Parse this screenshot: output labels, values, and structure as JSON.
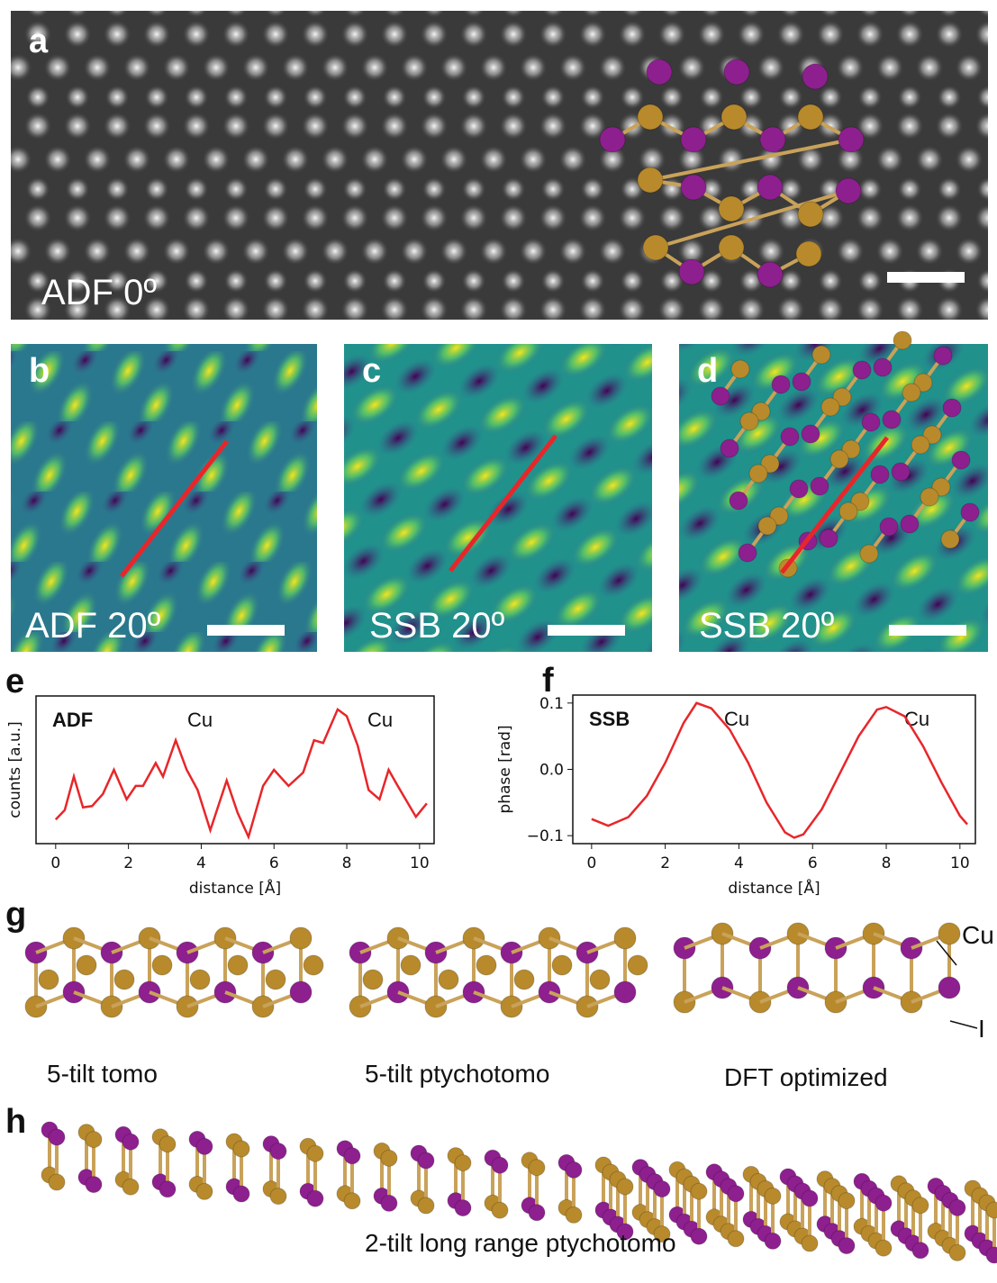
{
  "panels": [
    {
      "label": "a",
      "caption": "ADF 0º"
    },
    {
      "label": "b",
      "caption": "ADF 20º"
    },
    {
      "label": "c",
      "caption": "SSB 20º"
    },
    {
      "label": "d",
      "caption": "SSB 20º"
    }
  ],
  "chart_data": [
    {
      "type": "line",
      "panel": "e",
      "ylabel": "counts [a.u.]",
      "xlabel": "distance [Å]",
      "annotations": [
        "ADF",
        "Cu",
        "Cu"
      ],
      "x": [
        0,
        0.25,
        0.5,
        0.75,
        1.0,
        1.3,
        1.6,
        1.95,
        2.2,
        2.4,
        2.75,
        2.95,
        3.3,
        3.6,
        3.9,
        4.25,
        4.7,
        5.0,
        5.3,
        5.7,
        6.0,
        6.4,
        6.8,
        7.1,
        7.35,
        7.75,
        8.0,
        8.3,
        8.6,
        8.9,
        9.15,
        9.4,
        9.9,
        10.2
      ],
      "values": [
        0.13,
        0.2,
        0.45,
        0.22,
        0.23,
        0.32,
        0.5,
        0.28,
        0.38,
        0.38,
        0.55,
        0.45,
        0.72,
        0.5,
        0.35,
        0.05,
        0.42,
        0.18,
        0.0,
        0.38,
        0.5,
        0.38,
        0.48,
        0.72,
        0.7,
        0.95,
        0.9,
        0.68,
        0.35,
        0.28,
        0.5,
        0.38,
        0.15,
        0.25
      ],
      "color": "#e8262a",
      "xlim": [
        -0.54,
        10.4
      ],
      "xticks": [
        0,
        2,
        4,
        6,
        8,
        10
      ],
      "ylim": [
        -0.05,
        1.05
      ]
    },
    {
      "type": "line",
      "panel": "f",
      "ylabel": "phase [rad]",
      "xlabel": "distance [Å]",
      "annotations": [
        "SSB",
        "Cu",
        "Cu"
      ],
      "x": [
        0,
        0.45,
        1,
        1.5,
        2,
        2.5,
        2.85,
        3.25,
        3.75,
        4.25,
        4.75,
        5.25,
        5.5,
        5.75,
        6.25,
        6.75,
        7.25,
        7.75,
        8.0,
        8.5,
        9,
        9.5,
        10,
        10.2
      ],
      "values": [
        -0.075,
        -0.085,
        -0.072,
        -0.04,
        0.01,
        0.07,
        0.1,
        0.092,
        0.06,
        0.01,
        -0.05,
        -0.095,
        -0.103,
        -0.098,
        -0.06,
        -0.005,
        0.05,
        0.09,
        0.094,
        0.08,
        0.035,
        -0.02,
        -0.07,
        -0.083
      ],
      "color": "#e8262a",
      "xlim": [
        -0.51,
        10.42
      ],
      "xticks": [
        0,
        2,
        4,
        6,
        8,
        10
      ],
      "ylim": [
        -0.112,
        0.112
      ],
      "yticks": [
        {
          "value": -0.1,
          "label": "−0.1"
        },
        {
          "value": 0,
          "label": "0.0"
        },
        0.1
      ]
    }
  ],
  "structures": {
    "label": "g",
    "items": [
      "5-tilt tomo",
      "5-tilt ptychotomo",
      "DFT optimized"
    ],
    "atom_labels": [
      "Cu",
      "I"
    ]
  },
  "long_range": {
    "label": "h",
    "caption": "2-tilt long range ptychotomo"
  }
}
